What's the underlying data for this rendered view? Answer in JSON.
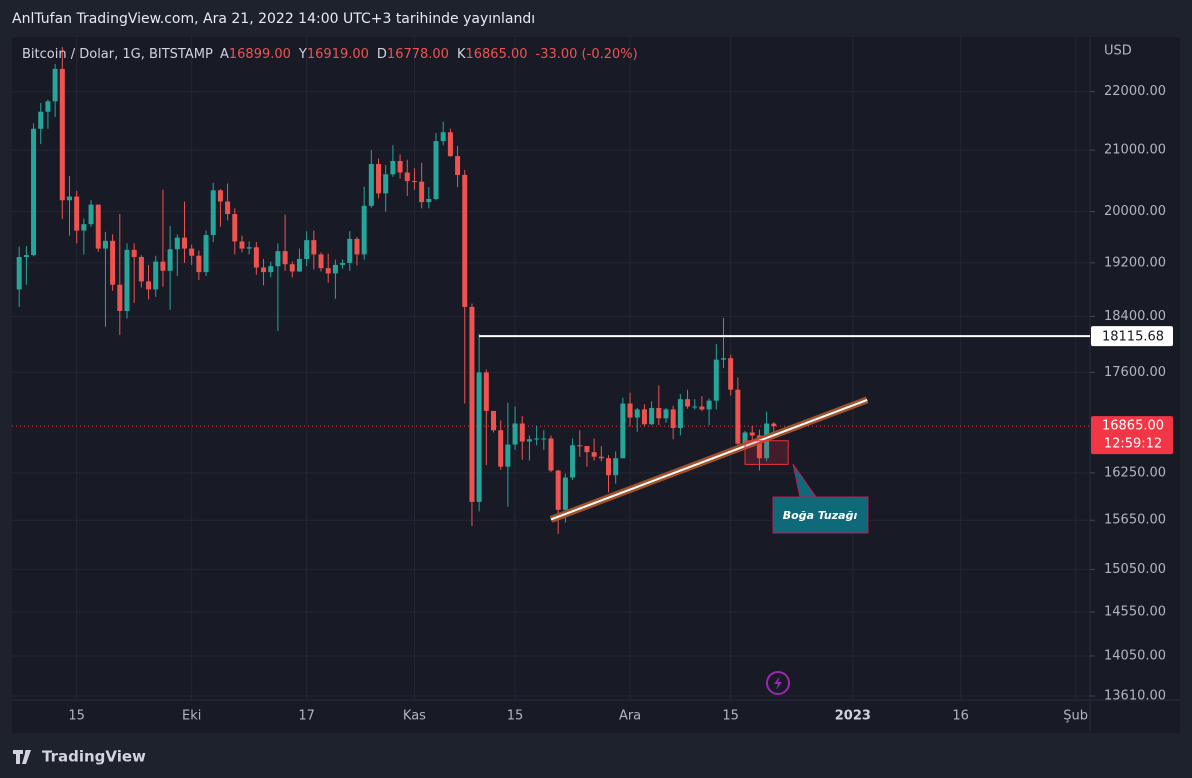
{
  "header": "AnlTufan TradingView.com, Ara 21, 2022 14:00 UTC+3 tarihinde yayınlandı",
  "logo": "TradingView",
  "chart_data": {
    "type": "candlestick",
    "symbol": "Bitcoin / Dolar, 1G, BITSTAMP",
    "ohlc_legend": [
      {
        "key": "A",
        "value": "16899.00"
      },
      {
        "key": "Y",
        "value": "16919.00"
      },
      {
        "key": "D",
        "value": "16778.00"
      },
      {
        "key": "K",
        "value": "16865.00"
      }
    ],
    "change": "-33.00 (-0.20%)",
    "currency": "USD",
    "up_color": "#26a69a",
    "down_color": "#ef5350",
    "yscale": "log",
    "grid": true,
    "ylim": [
      13567,
      22920
    ],
    "yticks": [
      {
        "value": 22000,
        "label": "22000.00"
      },
      {
        "value": 21000,
        "label": "21000.00"
      },
      {
        "value": 20000,
        "label": "20000.00"
      },
      {
        "value": 19200,
        "label": "19200.00"
      },
      {
        "value": 18400,
        "label": "18400.00"
      },
      {
        "value": 17600,
        "label": "17600.00"
      },
      {
        "value": 16250,
        "label": "16250.00"
      },
      {
        "value": 15650,
        "label": "15650.00"
      },
      {
        "value": 15050,
        "label": "15050.00"
      },
      {
        "value": 14550,
        "label": "14550.00"
      },
      {
        "value": 14050,
        "label": "14050.00"
      },
      {
        "value": 13610,
        "label": "13610.00"
      }
    ],
    "xlim": [
      "2022-09-06",
      "2023-02-03"
    ],
    "xticks": [
      {
        "value": "2022-09-15",
        "label": "15"
      },
      {
        "value": "2022-10-01",
        "label": "Eki"
      },
      {
        "value": "2022-10-17",
        "label": "17"
      },
      {
        "value": "2022-11-01",
        "label": "Kas"
      },
      {
        "value": "2022-11-15",
        "label": "15"
      },
      {
        "value": "2022-12-01",
        "label": "Ara"
      },
      {
        "value": "2022-12-15",
        "label": "15"
      },
      {
        "value": "2023-01-01",
        "label": "2023"
      },
      {
        "value": "2023-01-16",
        "label": "16"
      },
      {
        "value": "2023-02-01",
        "label": "Şub"
      }
    ],
    "x": [
      "2022-09-07",
      "2022-09-08",
      "2022-09-09",
      "2022-09-10",
      "2022-09-11",
      "2022-09-12",
      "2022-09-13",
      "2022-09-14",
      "2022-09-15",
      "2022-09-16",
      "2022-09-17",
      "2022-09-18",
      "2022-09-19",
      "2022-09-20",
      "2022-09-21",
      "2022-09-22",
      "2022-09-23",
      "2022-09-24",
      "2022-09-25",
      "2022-09-26",
      "2022-09-27",
      "2022-09-28",
      "2022-09-29",
      "2022-09-30",
      "2022-10-01",
      "2022-10-02",
      "2022-10-03",
      "2022-10-04",
      "2022-10-05",
      "2022-10-06",
      "2022-10-07",
      "2022-10-08",
      "2022-10-09",
      "2022-10-10",
      "2022-10-11",
      "2022-10-12",
      "2022-10-13",
      "2022-10-14",
      "2022-10-15",
      "2022-10-16",
      "2022-10-17",
      "2022-10-18",
      "2022-10-19",
      "2022-10-20",
      "2022-10-21",
      "2022-10-22",
      "2022-10-23",
      "2022-10-24",
      "2022-10-25",
      "2022-10-26",
      "2022-10-27",
      "2022-10-28",
      "2022-10-29",
      "2022-10-30",
      "2022-10-31",
      "2022-11-01",
      "2022-11-02",
      "2022-11-03",
      "2022-11-04",
      "2022-11-05",
      "2022-11-06",
      "2022-11-07",
      "2022-11-08",
      "2022-11-09",
      "2022-11-10",
      "2022-11-11",
      "2022-11-12",
      "2022-11-13",
      "2022-11-14",
      "2022-11-15",
      "2022-11-16",
      "2022-11-17",
      "2022-11-18",
      "2022-11-19",
      "2022-11-20",
      "2022-11-21",
      "2022-11-22",
      "2022-11-23",
      "2022-11-24",
      "2022-11-25",
      "2022-11-26",
      "2022-11-27",
      "2022-11-28",
      "2022-11-29",
      "2022-11-30",
      "2022-12-01",
      "2022-12-02",
      "2022-12-03",
      "2022-12-04",
      "2022-12-05",
      "2022-12-06",
      "2022-12-07",
      "2022-12-08",
      "2022-12-09",
      "2022-12-10",
      "2022-12-11",
      "2022-12-12",
      "2022-12-13",
      "2022-12-14",
      "2022-12-15",
      "2022-12-16",
      "2022-12-17",
      "2022-12-18",
      "2022-12-19",
      "2022-12-20",
      "2022-12-21"
    ],
    "open": [
      18800,
      19290,
      19320,
      21360,
      21650,
      21830,
      22400,
      20180,
      20240,
      19700,
      19800,
      20110,
      19420,
      19540,
      18870,
      18480,
      19400,
      19290,
      18920,
      18800,
      19220,
      19080,
      19410,
      19590,
      19420,
      19310,
      19060,
      19630,
      20340,
      20160,
      19960,
      19530,
      19420,
      19440,
      19130,
      19060,
      19150,
      19380,
      19180,
      19070,
      19260,
      19550,
      19330,
      19120,
      19040,
      19170,
      19200,
      19570,
      19330,
      20090,
      20770,
      20290,
      20600,
      20820,
      20630,
      20490,
      20480,
      20150,
      20200,
      21150,
      21300,
      20900,
      20590,
      18540,
      15880,
      17600,
      17070,
      16810,
      16330,
      16620,
      16900,
      16660,
      16690,
      16700,
      16700,
      16280,
      15780,
      16190,
      16610,
      16600,
      16520,
      16460,
      16440,
      16220,
      16440,
      17170,
      16980,
      17090,
      16890,
      17110,
      16970,
      17090,
      16840,
      17230,
      17130,
      17130,
      17090,
      17210,
      17780,
      17800,
      17360,
      16630,
      16780,
      16740,
      16440,
      16899
    ],
    "high": [
      19450,
      19460,
      21450,
      21800,
      21860,
      22490,
      22790,
      20570,
      20330,
      19890,
      20180,
      20110,
      19680,
      19640,
      19960,
      19500,
      19500,
      19320,
      19170,
      19310,
      20350,
      19770,
      19640,
      20160,
      19480,
      19390,
      19700,
      20460,
      20360,
      20450,
      20050,
      19620,
      19530,
      19520,
      19260,
      19220,
      19500,
      19950,
      19220,
      19420,
      19690,
      19700,
      19360,
      19340,
      19250,
      19250,
      19690,
      19600,
      20400,
      21000,
      20860,
      20750,
      21080,
      20930,
      20840,
      20700,
      20790,
      20390,
      21290,
      21480,
      21360,
      21070,
      20670,
      18590,
      18150,
      17640,
      17070,
      16940,
      17180,
      17130,
      17000,
      16740,
      16870,
      16810,
      16740,
      16290,
      16240,
      16700,
      16810,
      16600,
      16700,
      16600,
      16480,
      16530,
      17250,
      17320,
      17110,
      17160,
      17200,
      17420,
      17110,
      17140,
      17300,
      17360,
      17230,
      17270,
      17240,
      18000,
      18380,
      17850,
      17530,
      16800,
      16870,
      16820,
      17060,
      16919
    ],
    "low": [
      18540,
      18870,
      19300,
      21100,
      21360,
      21560,
      19880,
      19620,
      19500,
      19330,
      19760,
      19370,
      18250,
      18780,
      18130,
      18370,
      18600,
      18830,
      18650,
      18690,
      18840,
      18500,
      19000,
      19200,
      19170,
      18940,
      19000,
      19520,
      19760,
      19860,
      19330,
      19360,
      19330,
      19020,
      18860,
      18980,
      18190,
      19080,
      18980,
      19060,
      19150,
      19100,
      19070,
      18900,
      18660,
      19110,
      19080,
      19160,
      19250,
      20060,
      20210,
      20000,
      20560,
      20530,
      20250,
      20350,
      20050,
      20050,
      20180,
      21080,
      20890,
      20390,
      17170,
      15580,
      15760,
      16350,
      16780,
      16290,
      15820,
      16550,
      16420,
      16410,
      16610,
      16550,
      16260,
      15480,
      15620,
      16160,
      16460,
      16330,
      16410,
      16400,
      16000,
      16110,
      16440,
      16860,
      16790,
      16870,
      16880,
      16880,
      16910,
      16690,
      16740,
      17100,
      17090,
      17070,
      16880,
      17090,
      17660,
      17280,
      16560,
      16600,
      16670,
      16280,
      16400,
      16778
    ],
    "close": [
      19290,
      19320,
      21360,
      21650,
      21830,
      22400,
      20180,
      20240,
      19700,
      19800,
      20110,
      19420,
      19540,
      18870,
      18480,
      19400,
      19290,
      18920,
      18800,
      19220,
      19080,
      19410,
      19590,
      19420,
      19310,
      19060,
      19630,
      20340,
      20160,
      19960,
      19530,
      19420,
      19440,
      19130,
      19060,
      19150,
      19380,
      19180,
      19070,
      19260,
      19550,
      19330,
      19120,
      19040,
      19170,
      19200,
      19570,
      19330,
      20090,
      20770,
      20290,
      20600,
      20820,
      20630,
      20490,
      20480,
      20150,
      20200,
      21150,
      21300,
      20900,
      20590,
      18540,
      15880,
      17600,
      17070,
      16810,
      16330,
      16620,
      16900,
      16660,
      16690,
      16700,
      16700,
      16280,
      15780,
      16190,
      16610,
      16600,
      16520,
      16460,
      16440,
      16220,
      16440,
      17170,
      16980,
      17090,
      16890,
      17110,
      16970,
      17090,
      16840,
      17230,
      17130,
      17130,
      17090,
      17210,
      17780,
      17800,
      17360,
      16630,
      16780,
      16740,
      16440,
      16900,
      16865
    ],
    "price_line": {
      "value": 18115.68,
      "start": "2022-11-10",
      "color": "#ffffff"
    },
    "last_price": {
      "value": 16865,
      "label": "16865.00",
      "countdown": "12:59:12",
      "color": "#f23645"
    },
    "trendline": {
      "start": {
        "x": "2022-11-20",
        "y": 15660
      },
      "end": {
        "x": "2023-01-03",
        "y": 17220
      },
      "color": "#a0522d"
    },
    "annotation": {
      "text": "Boğa Tuzağı",
      "x": [
        "2022-12-17",
        "2022-12-23"
      ],
      "y": [
        16360,
        16670
      ],
      "color": "#ef2f3c"
    }
  }
}
